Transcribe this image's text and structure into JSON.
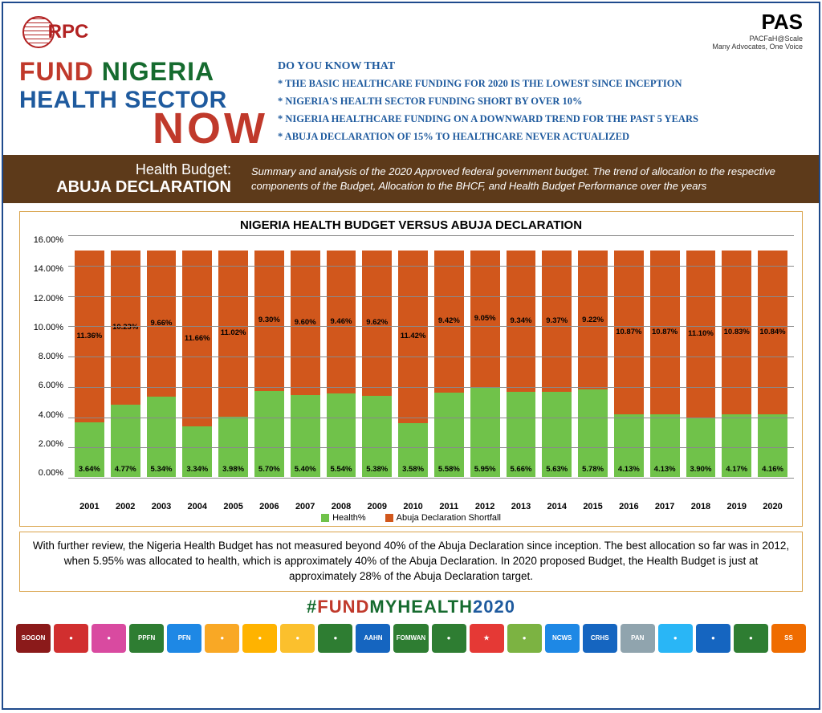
{
  "logos": {
    "left_text": "RPC",
    "right_main": "PAS",
    "right_sub1": "PACFaH@Scale",
    "right_sub2": "Many Advocates, One Voice"
  },
  "title": {
    "line1_word1": "FUND",
    "line1_word2": "NIGERIA",
    "line2": "HEALTH SECTOR",
    "line3": "NOW"
  },
  "facts": {
    "heading": "DO YOU KNOW THAT",
    "items": [
      "*  THE  BASIC HEALTHCARE FUNDING FOR 2020 IS THE LOWEST SINCE INCEPTION",
      "*  NIGERIA'S HEALTH SECTOR FUNDING SHORT BY OVER 10%",
      "*  NIGERIA HEALTHCARE FUNDING ON A DOWNWARD TREND FOR THE PAST 5 YEARS",
      "*  ABUJA DECLARATION OF 15% TO HEALTHCARE NEVER ACTUALIZED"
    ]
  },
  "banner": {
    "left_line1": "Health Budget:",
    "left_line2": "ABUJA DECLARATION",
    "right": "Summary and analysis of the 2020 Approved federal government budget. The trend of allocation to the respective components of the Budget, Allocation to the BHCF, and Health Budget Performance over the years"
  },
  "chart": {
    "type": "stacked-bar",
    "title": "NIGERIA HEALTH BUDGET VERSUS ABUJA DECLARATION",
    "ylim_max": 16.0,
    "ytick_step": 2.0,
    "yticks": [
      "16.00%",
      "14.00%",
      "12.00%",
      "10.00%",
      "8.00%",
      "6.00%",
      "4.00%",
      "2.00%",
      "0.00%"
    ],
    "health_color": "#70c24a",
    "shortfall_color": "#d1571c",
    "gridline_color": "#8a8a8a",
    "border_color": "#d9a34a",
    "bar_width_pct": 82,
    "years": [
      "2001",
      "2002",
      "2003",
      "2004",
      "2005",
      "2006",
      "2007",
      "2008",
      "2009",
      "2010",
      "2011",
      "2012",
      "2013",
      "2014",
      "2015",
      "2016",
      "2017",
      "2018",
      "2019",
      "2020"
    ],
    "health": [
      3.64,
      4.77,
      5.34,
      3.34,
      3.98,
      5.7,
      5.4,
      5.54,
      5.38,
      3.58,
      5.58,
      5.95,
      5.66,
      5.63,
      5.78,
      4.13,
      4.13,
      3.9,
      4.17,
      4.16
    ],
    "shortfall": [
      11.36,
      10.23,
      9.66,
      11.66,
      11.02,
      9.3,
      9.6,
      9.46,
      9.62,
      11.42,
      9.42,
      9.05,
      9.34,
      9.37,
      9.22,
      10.87,
      10.87,
      11.1,
      10.83,
      10.84
    ],
    "legend": {
      "health": "Health%",
      "shortfall": "Abuja Declaration  Shortfall"
    }
  },
  "summary": "With further review, the Nigeria Health Budget has not measured beyond 40% of the Abuja Declaration since inception. The best allocation so far was in 2012, when 5.95% was allocated to health, which is approximately 40% of the Abuja Declaration. In 2020 proposed Budget, the Health Budget is just at approximately 28% of the Abuja Declaration target.",
  "hashtag": {
    "hash": "#",
    "p1": "FUND",
    "p2": "MYHEALTH",
    "p3": "2020"
  },
  "footer_logos": [
    {
      "bg": "#8b1a1a",
      "txt": "SOGON"
    },
    {
      "bg": "#d12f2f",
      "txt": "●"
    },
    {
      "bg": "#d94aa0",
      "txt": "●"
    },
    {
      "bg": "#2e7d32",
      "txt": "PPFN"
    },
    {
      "bg": "#1e88e5",
      "txt": "PFN"
    },
    {
      "bg": "#f9a825",
      "txt": "●"
    },
    {
      "bg": "#ffb300",
      "txt": "●"
    },
    {
      "bg": "#fbc02d",
      "txt": "●"
    },
    {
      "bg": "#2e7d32",
      "txt": "●"
    },
    {
      "bg": "#1565c0",
      "txt": "AAHN"
    },
    {
      "bg": "#2e7d32",
      "txt": "FOMWAN"
    },
    {
      "bg": "#2e7d32",
      "txt": "●"
    },
    {
      "bg": "#e53935",
      "txt": "★"
    },
    {
      "bg": "#7cb342",
      "txt": "●"
    },
    {
      "bg": "#1e88e5",
      "txt": "NCWS"
    },
    {
      "bg": "#1565c0",
      "txt": "CRHS"
    },
    {
      "bg": "#90a4ae",
      "txt": "PAN"
    },
    {
      "bg": "#29b6f6",
      "txt": "●"
    },
    {
      "bg": "#1565c0",
      "txt": "●"
    },
    {
      "bg": "#2e7d32",
      "txt": "●"
    },
    {
      "bg": "#ef6c00",
      "txt": "SS"
    }
  ]
}
